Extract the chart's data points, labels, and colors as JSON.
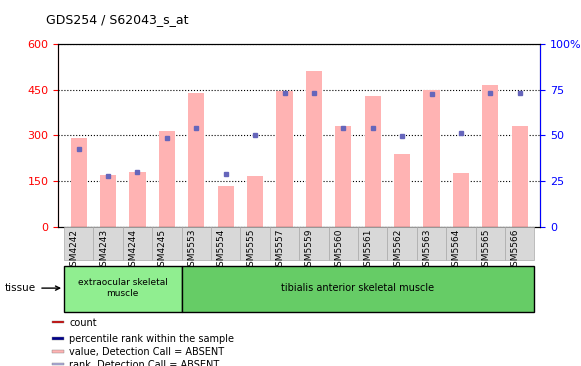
{
  "title": "GDS254 / S62043_s_at",
  "samples": [
    "GSM4242",
    "GSM4243",
    "GSM4244",
    "GSM4245",
    "GSM5553",
    "GSM5554",
    "GSM5555",
    "GSM5557",
    "GSM5559",
    "GSM5560",
    "GSM5561",
    "GSM5562",
    "GSM5563",
    "GSM5564",
    "GSM5565",
    "GSM5566"
  ],
  "pink_bars": [
    290,
    170,
    180,
    315,
    440,
    135,
    168,
    447,
    510,
    330,
    430,
    240,
    450,
    178,
    465,
    330
  ],
  "blue_dots_left": [
    255,
    168,
    180,
    290,
    325,
    175,
    302,
    438,
    440,
    325,
    325,
    298,
    435,
    308,
    438,
    440
  ],
  "ylim_left": [
    0,
    600
  ],
  "ylim_right": [
    0,
    100
  ],
  "yticks_left": [
    0,
    150,
    300,
    450,
    600
  ],
  "yticks_right": [
    0,
    25,
    50,
    75,
    100
  ],
  "ylabel_left_color": "#ff0000",
  "ylabel_right_color": "#0000ff",
  "tissue_groups": [
    {
      "label": "extraocular skeletal\nmuscle",
      "n_samples": 4,
      "color": "#90ee90"
    },
    {
      "label": "tibialis anterior skeletal muscle",
      "n_samples": 12,
      "color": "#66cc66"
    }
  ],
  "bar_color_pink": "#ffb3b3",
  "dot_color_blue": "#6666bb",
  "legend_items": [
    {
      "color": "#cc0000",
      "label": "count"
    },
    {
      "color": "#00008b",
      "label": "percentile rank within the sample"
    },
    {
      "color": "#ffb3b3",
      "label": "value, Detection Call = ABSENT"
    },
    {
      "color": "#aaaadd",
      "label": "rank, Detection Call = ABSENT"
    }
  ],
  "background_color": "#ffffff",
  "tick_label_bg": "#d8d8d8",
  "figsize": [
    5.81,
    3.66
  ],
  "dpi": 100
}
